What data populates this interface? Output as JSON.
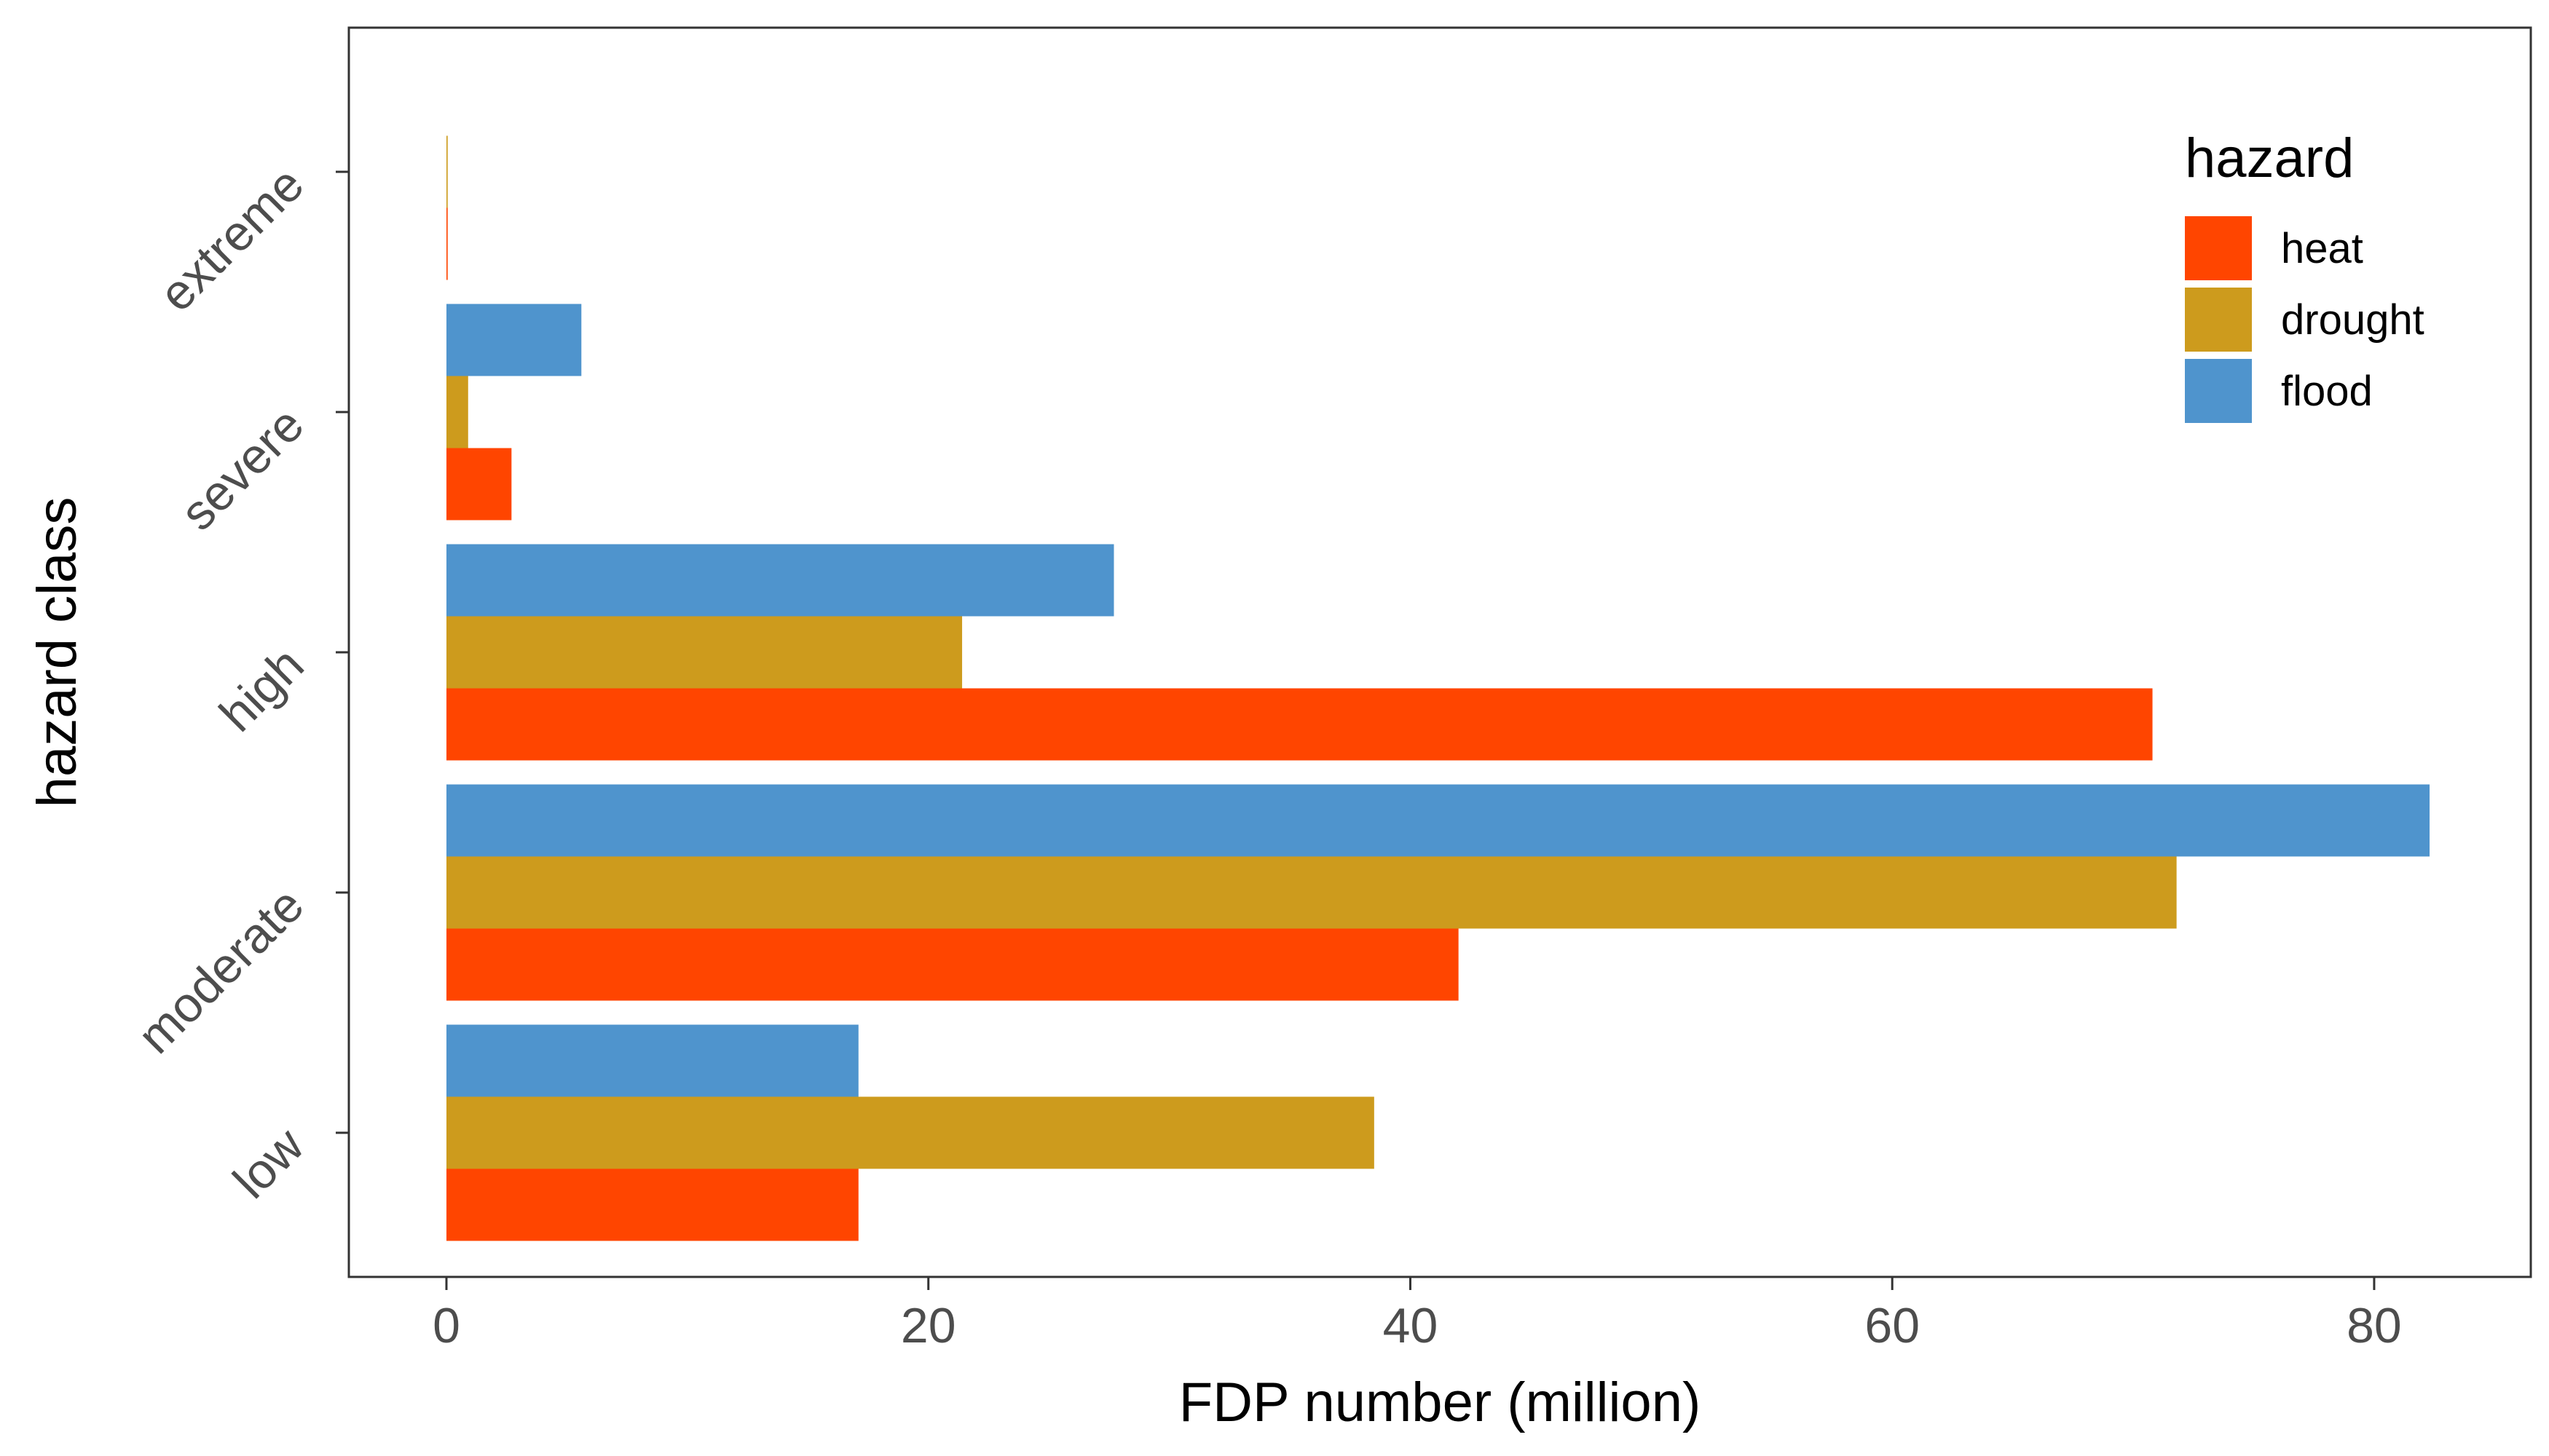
{
  "chart_data": {
    "type": "bar",
    "orientation": "horizontal",
    "categories": [
      "low",
      "moderate",
      "high",
      "severe",
      "extreme"
    ],
    "series": [
      {
        "name": "heat",
        "color": "#FF4500",
        "values": [
          17.1,
          42.0,
          70.8,
          2.7,
          0.05
        ]
      },
      {
        "name": "drought",
        "color": "#CD9B1D",
        "values": [
          38.5,
          71.8,
          21.4,
          0.9,
          0.05
        ]
      },
      {
        "name": "flood",
        "color": "#4F94CD",
        "values": [
          17.1,
          82.3,
          27.7,
          5.6,
          0.0
        ]
      }
    ],
    "xlabel": "FDP number (million)",
    "ylabel": "hazard class",
    "xlim": [
      -4.05,
      86.5
    ],
    "xticks": [
      0,
      20,
      40,
      60,
      80
    ],
    "grid": false,
    "legend": {
      "title": "hazard",
      "position": "top-right"
    }
  }
}
